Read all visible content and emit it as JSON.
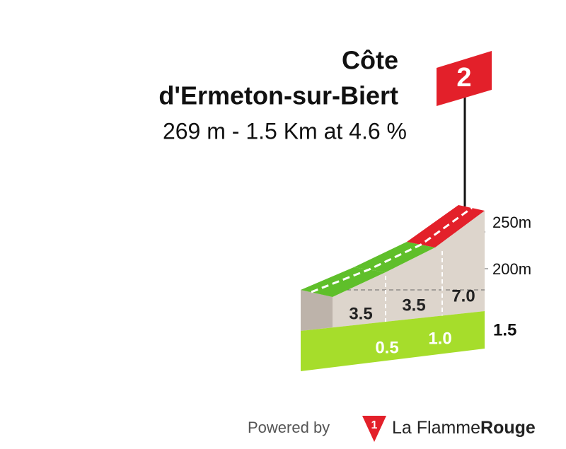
{
  "title": {
    "line1": "Côte",
    "line2": "d'Ermeton-sur-Biert"
  },
  "subtitle": "269 m - 1.5 Km at 4.6 %",
  "category": "2",
  "elevation_labels": [
    "250m",
    "200m"
  ],
  "segments": {
    "gradients": [
      "3.5",
      "3.5",
      "7.0"
    ],
    "km_marks": [
      "0.5",
      "1.0",
      "1.5"
    ]
  },
  "footer": {
    "powered_by": "Powered by",
    "brand_light": "La Flamme",
    "brand_bold": "Rouge"
  }
}
